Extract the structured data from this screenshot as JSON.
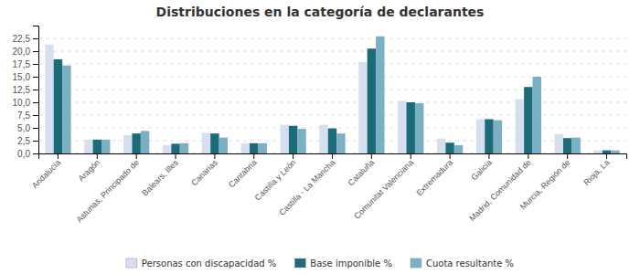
{
  "chart_data": {
    "type": "bar",
    "title": "Distribuciones en la categoría de declarantes",
    "categories": [
      "Andalucía",
      "Aragón",
      "Asturias, Principado de",
      "Balears, Illes",
      "Canarias",
      "Cantabria",
      "Castilla y León",
      "Castilla - La Mancha",
      "Cataluña",
      "Comunitat Valenciana",
      "Extremadura",
      "Galicia",
      "Madrid, Comunidad de",
      "Murcia, Región de",
      "Rioja, La"
    ],
    "series": [
      {
        "name": "Personas con discapacidad %",
        "color": "#d6dff0",
        "values": [
          21.3,
          2.7,
          3.6,
          1.6,
          4.0,
          2.0,
          5.6,
          5.6,
          17.9,
          10.3,
          2.9,
          6.7,
          10.6,
          3.8,
          0.6
        ]
      },
      {
        "name": "Base imponible %",
        "color": "#1c6b79",
        "values": [
          18.4,
          2.7,
          3.9,
          1.9,
          3.9,
          2.0,
          5.4,
          4.9,
          20.5,
          10.0,
          2.1,
          6.7,
          13.0,
          3.0,
          0.6
        ]
      },
      {
        "name": "Cuota resultante %",
        "color": "#7aafc4",
        "values": [
          17.2,
          2.7,
          4.4,
          2.0,
          3.1,
          2.0,
          4.8,
          3.9,
          22.9,
          9.8,
          1.6,
          6.5,
          15.0,
          3.1,
          0.6
        ]
      }
    ],
    "ylim": [
      0,
      25
    ],
    "yticks": [
      {
        "value": 0.0,
        "label": "0,0"
      },
      {
        "value": 2.5,
        "label": "2,5"
      },
      {
        "value": 5.0,
        "label": "5,0"
      },
      {
        "value": 7.5,
        "label": "7,5"
      },
      {
        "value": 10.0,
        "label": "10,0"
      },
      {
        "value": 12.5,
        "label": "12,5"
      },
      {
        "value": 15.0,
        "label": "15,0"
      },
      {
        "value": 17.5,
        "label": "17,5"
      },
      {
        "value": 20.0,
        "label": "20,0"
      },
      {
        "value": 22.5,
        "label": "22,5"
      }
    ],
    "grid": true,
    "legend": "bottom"
  }
}
